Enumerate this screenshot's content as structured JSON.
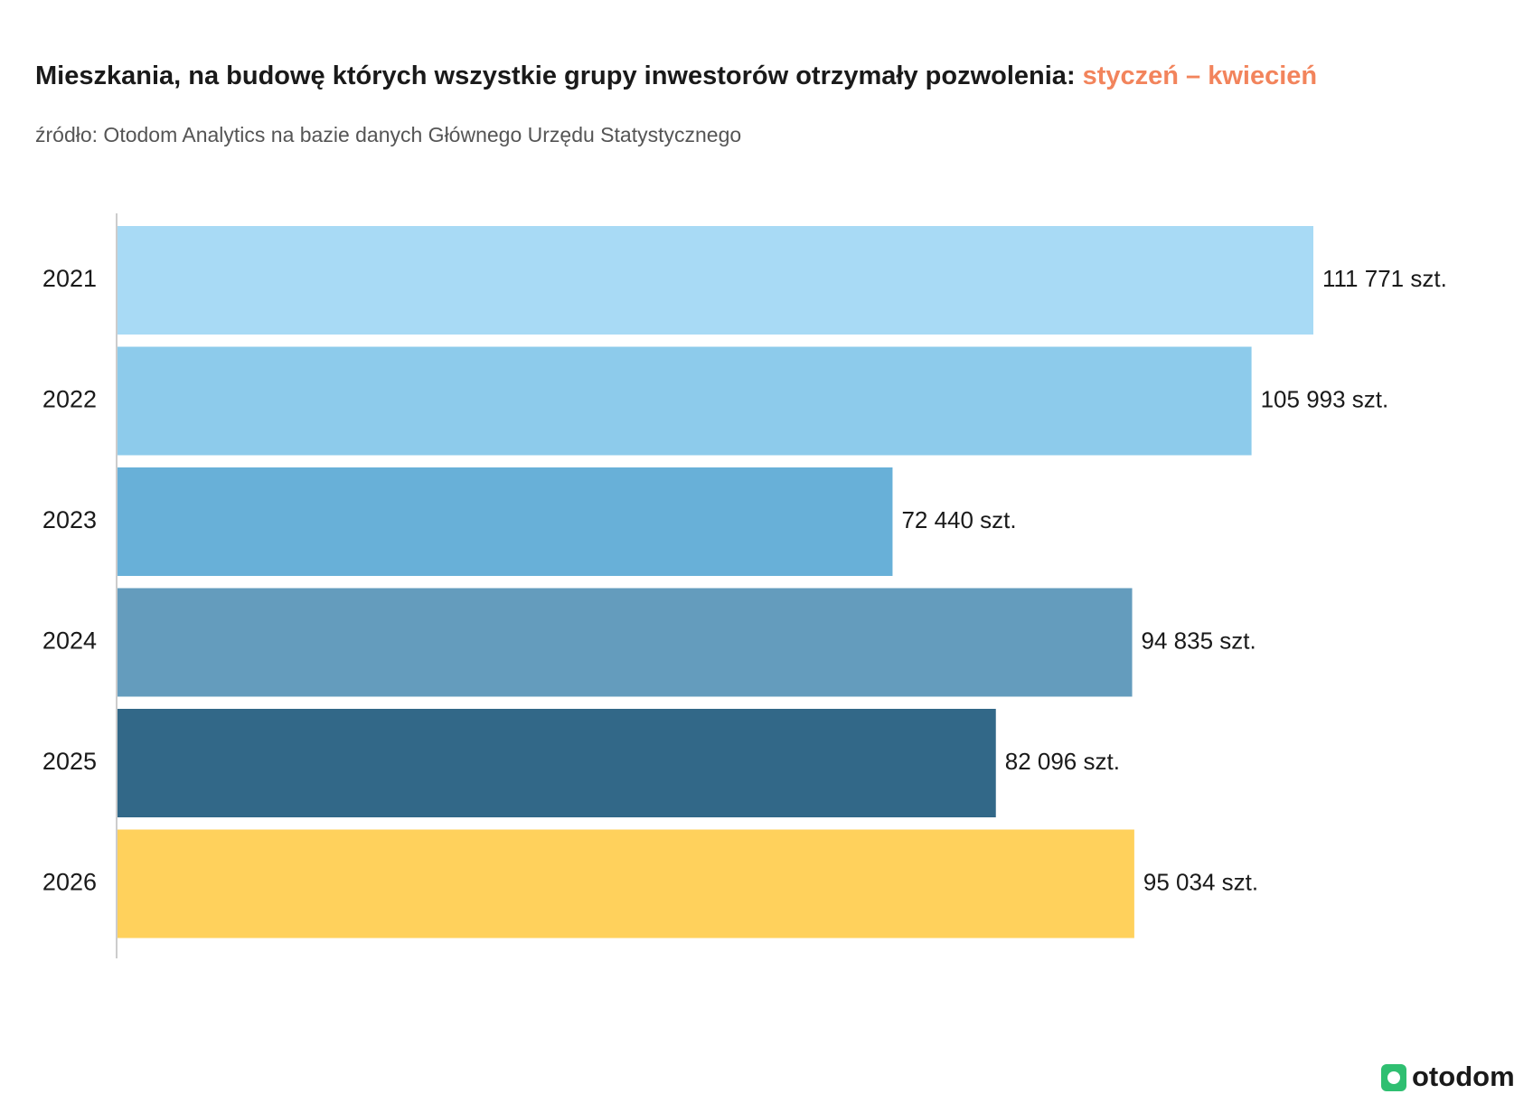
{
  "chart_data": {
    "type": "bar",
    "orientation": "horizontal",
    "title": "Mieszkania, na budowę których wszystkie grupy inwestorów otrzymały pozwolenia:",
    "title_period": "styczeń – kwiecień",
    "subtitle": "źródło: Otodom Analytics na bazie danych Głównego Urzędu Statystycznego",
    "categories": [
      "2021",
      "2022",
      "2023",
      "2024",
      "2025",
      "2026"
    ],
    "values": [
      111771,
      105993,
      72440,
      94835,
      82096,
      95034
    ],
    "value_labels": [
      "111 771 szt.",
      "105 993 szt.",
      "72 440 szt.",
      "94 835 szt.",
      "82 096 szt.",
      "95 034 szt."
    ],
    "colors": [
      "#a8daf5",
      "#8dcbeb",
      "#68b0d8",
      "#649cbd",
      "#326888",
      "#ffd15c"
    ],
    "logo": "otodom"
  }
}
